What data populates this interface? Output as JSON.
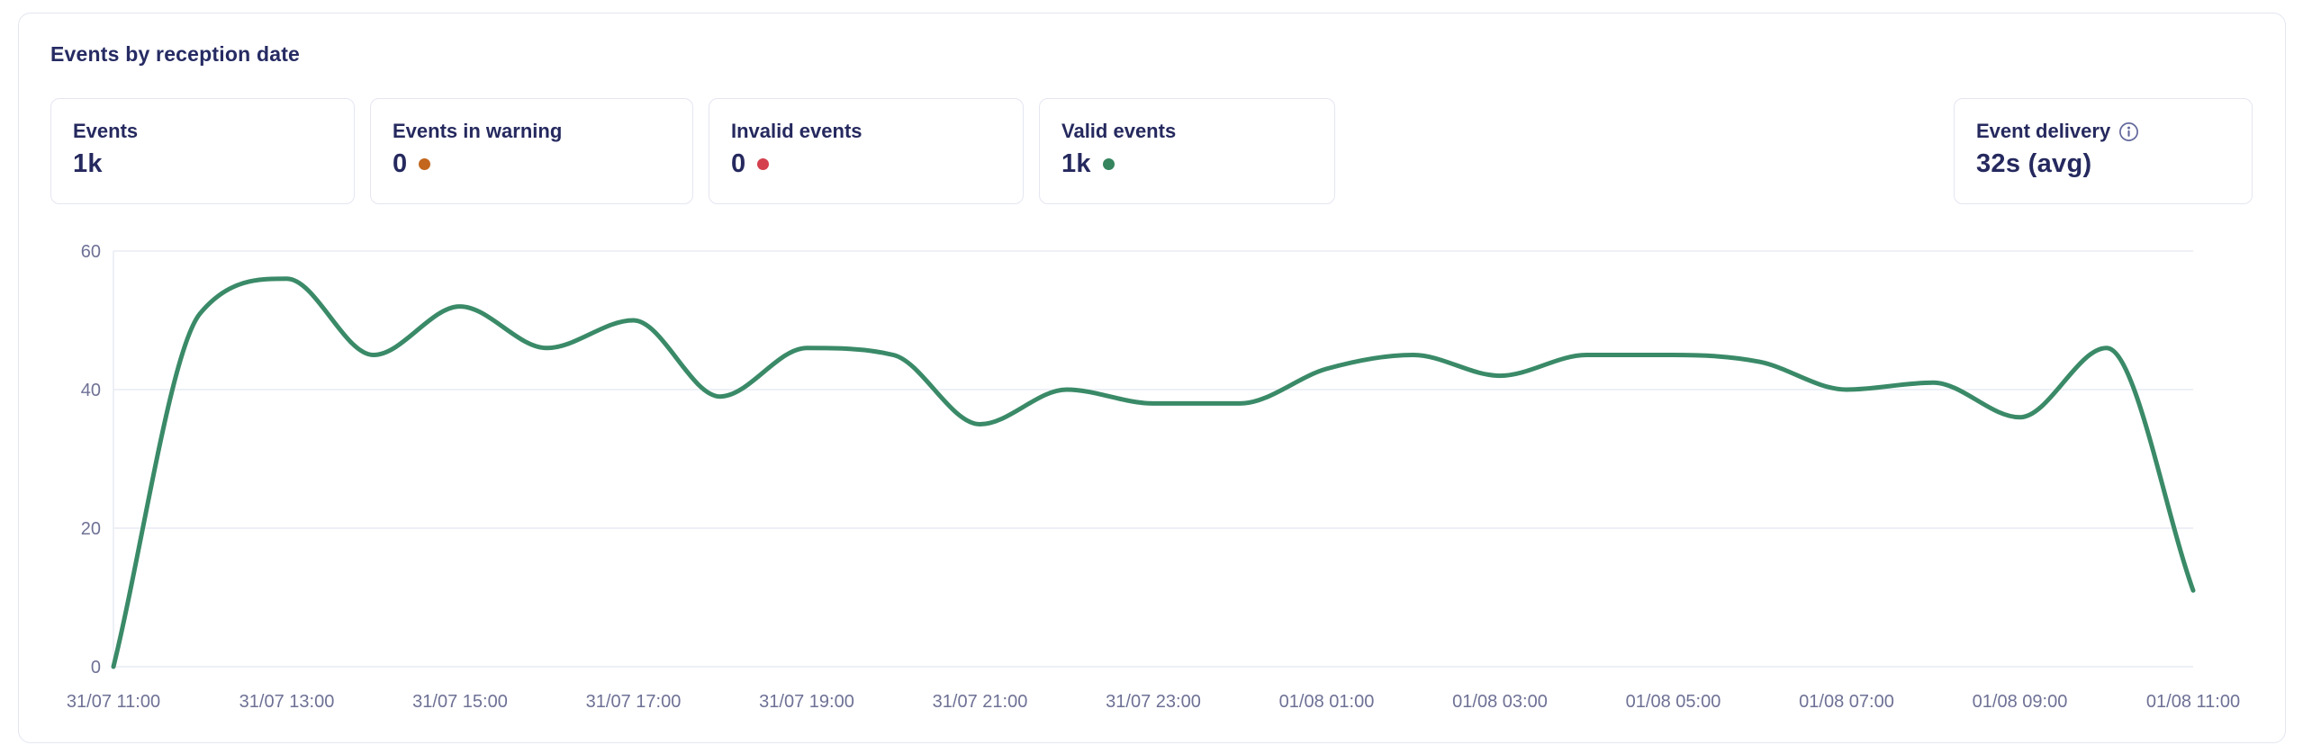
{
  "panel": {
    "title": "Events by reception date"
  },
  "stats": {
    "events": {
      "label": "Events",
      "value": "1k"
    },
    "warning": {
      "label": "Events in warning",
      "value": "0",
      "dot_color": "#c2671d"
    },
    "invalid": {
      "label": "Invalid events",
      "value": "0",
      "dot_color": "#d4404e"
    },
    "valid": {
      "label": "Valid events",
      "value": "1k",
      "dot_color": "#35855f"
    },
    "delivery": {
      "label": "Event delivery",
      "value": "32s (avg)",
      "info_icon": "info-icon"
    }
  },
  "chart_data": {
    "type": "line",
    "title": "Events by reception date",
    "tick_labels": [
      "31/07 11:00",
      "31/07 13:00",
      "31/07 15:00",
      "31/07 17:00",
      "31/07 19:00",
      "31/07 21:00",
      "31/07 23:00",
      "01/08 01:00",
      "01/08 03:00",
      "01/08 05:00",
      "01/08 07:00",
      "01/08 09:00",
      "01/08 11:00"
    ],
    "values": [
      0,
      51,
      56,
      45,
      52,
      46,
      50,
      39,
      46,
      45,
      35,
      40,
      38,
      38,
      43,
      45,
      42,
      45,
      45,
      44,
      40,
      41,
      36,
      46,
      11
    ],
    "y_ticks": [
      0,
      20,
      40,
      60
    ],
    "ylim": [
      0,
      60
    ],
    "xlabel": "",
    "ylabel": "",
    "legend": "none",
    "grid": "horizontal",
    "line_color": "#3a8a68",
    "axis_label_color": "#6e7195",
    "grid_color": "#e9ebf3"
  }
}
